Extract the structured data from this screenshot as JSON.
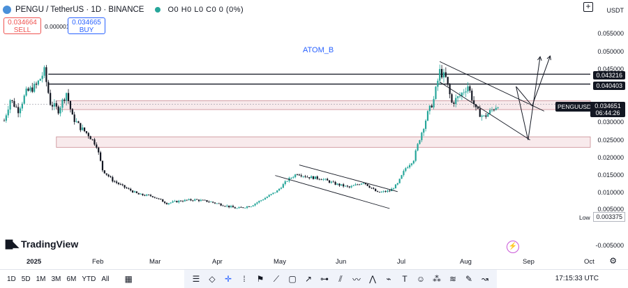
{
  "header": {
    "title": "PENGU / TetherUS · 1D · BINANCE",
    "ohlc": "O0 H0 L0 C0 0 (0%)"
  },
  "trade": {
    "sell_price": "0.034664",
    "sell_label": "SELL",
    "spread": "0.000001",
    "buy_price": "0.034665",
    "buy_label": "BUY"
  },
  "annotation": "ATOM_B",
  "currency": "USDT",
  "price_axis": [
    "0.055000",
    "0.050000",
    "0.045000",
    "0.030000",
    "0.025000",
    "0.020000",
    "0.015000",
    "0.010000",
    "0.005000",
    "-0.005000"
  ],
  "price_tags": {
    "upper": "0.043216",
    "lower": "0.040403",
    "current": "0.034651",
    "countdown": "06:44:26"
  },
  "symbol_tag": "PENGUUSDT",
  "low": {
    "label": "Low",
    "value": "0.003375"
  },
  "time_axis": [
    "2025",
    "Feb",
    "Mar",
    "Apr",
    "May",
    "Jun",
    "Jul",
    "Aug",
    "Sep",
    "Oct"
  ],
  "brand": "TradingView",
  "timeframes": [
    "1D",
    "5D",
    "1M",
    "3M",
    "6M",
    "YTD",
    "All"
  ],
  "clock": "17:15:33 UTC",
  "colors": {
    "up": "#26a69a",
    "down": "#131722",
    "accent": "#2962ff",
    "sell": "#ef5350",
    "zone": "#f3d9dc"
  },
  "chart_data": {
    "type": "candlestick",
    "title": "PENGU / TetherUS · 1D · BINANCE",
    "x_ticks": [
      "2025",
      "Feb",
      "Mar",
      "Apr",
      "May",
      "Jun",
      "Jul",
      "Aug",
      "Sep",
      "Oct"
    ],
    "y_ticks": [
      0.055,
      0.05,
      0.045,
      0.03,
      0.025,
      0.02,
      0.015,
      0.01,
      0.005,
      -0.005
    ],
    "ylim": [
      -0.006,
      0.058
    ],
    "x_start": "2024-12-17",
    "x_end": "2025-10-05",
    "horizontal_lines": [
      0.043216,
      0.040403
    ],
    "zones": [
      [
        0.03315,
        0.03565
      ],
      [
        0.0224,
        0.0254
      ]
    ],
    "price_path": [
      [
        "2024-12-17",
        0.03
      ],
      [
        "2024-12-20",
        0.036
      ],
      [
        "2024-12-24",
        0.033
      ],
      [
        "2024-12-28",
        0.038
      ],
      [
        "2025-01-02",
        0.04
      ],
      [
        "2025-01-06",
        0.044
      ],
      [
        "2025-01-09",
        0.035
      ],
      [
        "2025-01-13",
        0.033
      ],
      [
        "2025-01-17",
        0.038
      ],
      [
        "2025-01-20",
        0.031
      ],
      [
        "2025-01-24",
        0.028
      ],
      [
        "2025-01-28",
        0.026
      ],
      [
        "2025-02-01",
        0.023
      ],
      [
        "2025-02-04",
        0.016
      ],
      [
        "2025-02-09",
        0.013
      ],
      [
        "2025-02-15",
        0.011
      ],
      [
        "2025-02-22",
        0.009
      ],
      [
        "2025-03-01",
        0.0085
      ],
      [
        "2025-03-08",
        0.0065
      ],
      [
        "2025-03-15",
        0.0072
      ],
      [
        "2025-03-22",
        0.0075
      ],
      [
        "2025-03-29",
        0.007
      ],
      [
        "2025-04-05",
        0.006
      ],
      [
        "2025-04-12",
        0.005
      ],
      [
        "2025-04-19",
        0.0058
      ],
      [
        "2025-04-26",
        0.008
      ],
      [
        "2025-05-02",
        0.01
      ],
      [
        "2025-05-07",
        0.013
      ],
      [
        "2025-05-12",
        0.015
      ],
      [
        "2025-05-17",
        0.014
      ],
      [
        "2025-05-24",
        0.0135
      ],
      [
        "2025-05-31",
        0.012
      ],
      [
        "2025-06-07",
        0.011
      ],
      [
        "2025-06-14",
        0.0125
      ],
      [
        "2025-06-21",
        0.0095
      ],
      [
        "2025-06-27",
        0.01
      ],
      [
        "2025-07-01",
        0.012
      ],
      [
        "2025-07-05",
        0.0165
      ],
      [
        "2025-07-09",
        0.019
      ],
      [
        "2025-07-12",
        0.025
      ],
      [
        "2025-07-16",
        0.032
      ],
      [
        "2025-07-19",
        0.036
      ],
      [
        "2025-07-22",
        0.044
      ],
      [
        "2025-07-25",
        0.042
      ],
      [
        "2025-07-28",
        0.035
      ],
      [
        "2025-08-01",
        0.037
      ],
      [
        "2025-08-05",
        0.04
      ],
      [
        "2025-08-09",
        0.033
      ],
      [
        "2025-08-13",
        0.031
      ],
      [
        "2025-08-17",
        0.033
      ],
      [
        "2025-08-20",
        0.0347
      ]
    ],
    "channels": [
      {
        "name": "",
        "upper": [
          [
            "2025-05-13",
            0.0174
          ],
          [
            "2025-07-01",
            0.0098
          ]
        ],
        "lower": [
          [
            "2025-05-01",
            0.0144
          ],
          [
            "2025-06-27",
            0.005
          ]
        ]
      },
      {
        "name": "",
        "upper": [
          [
            "2025-07-22",
            0.0468
          ],
          [
            "2025-09-12",
            0.0327
          ]
        ],
        "lower": [
          [
            "2025-07-22",
            0.041
          ],
          [
            "2025-09-05",
            0.0245
          ]
        ]
      }
    ],
    "projections": [
      [
        [
          "2025-08-29",
          0.0397
        ],
        [
          "2025-09-06",
          0.0342
        ],
        [
          "2025-09-15",
          0.0484
        ]
      ],
      [
        [
          "2025-08-29",
          0.0397
        ],
        [
          "2025-09-04",
          0.0245
        ],
        [
          "2025-09-10",
          0.0482
        ]
      ]
    ]
  }
}
